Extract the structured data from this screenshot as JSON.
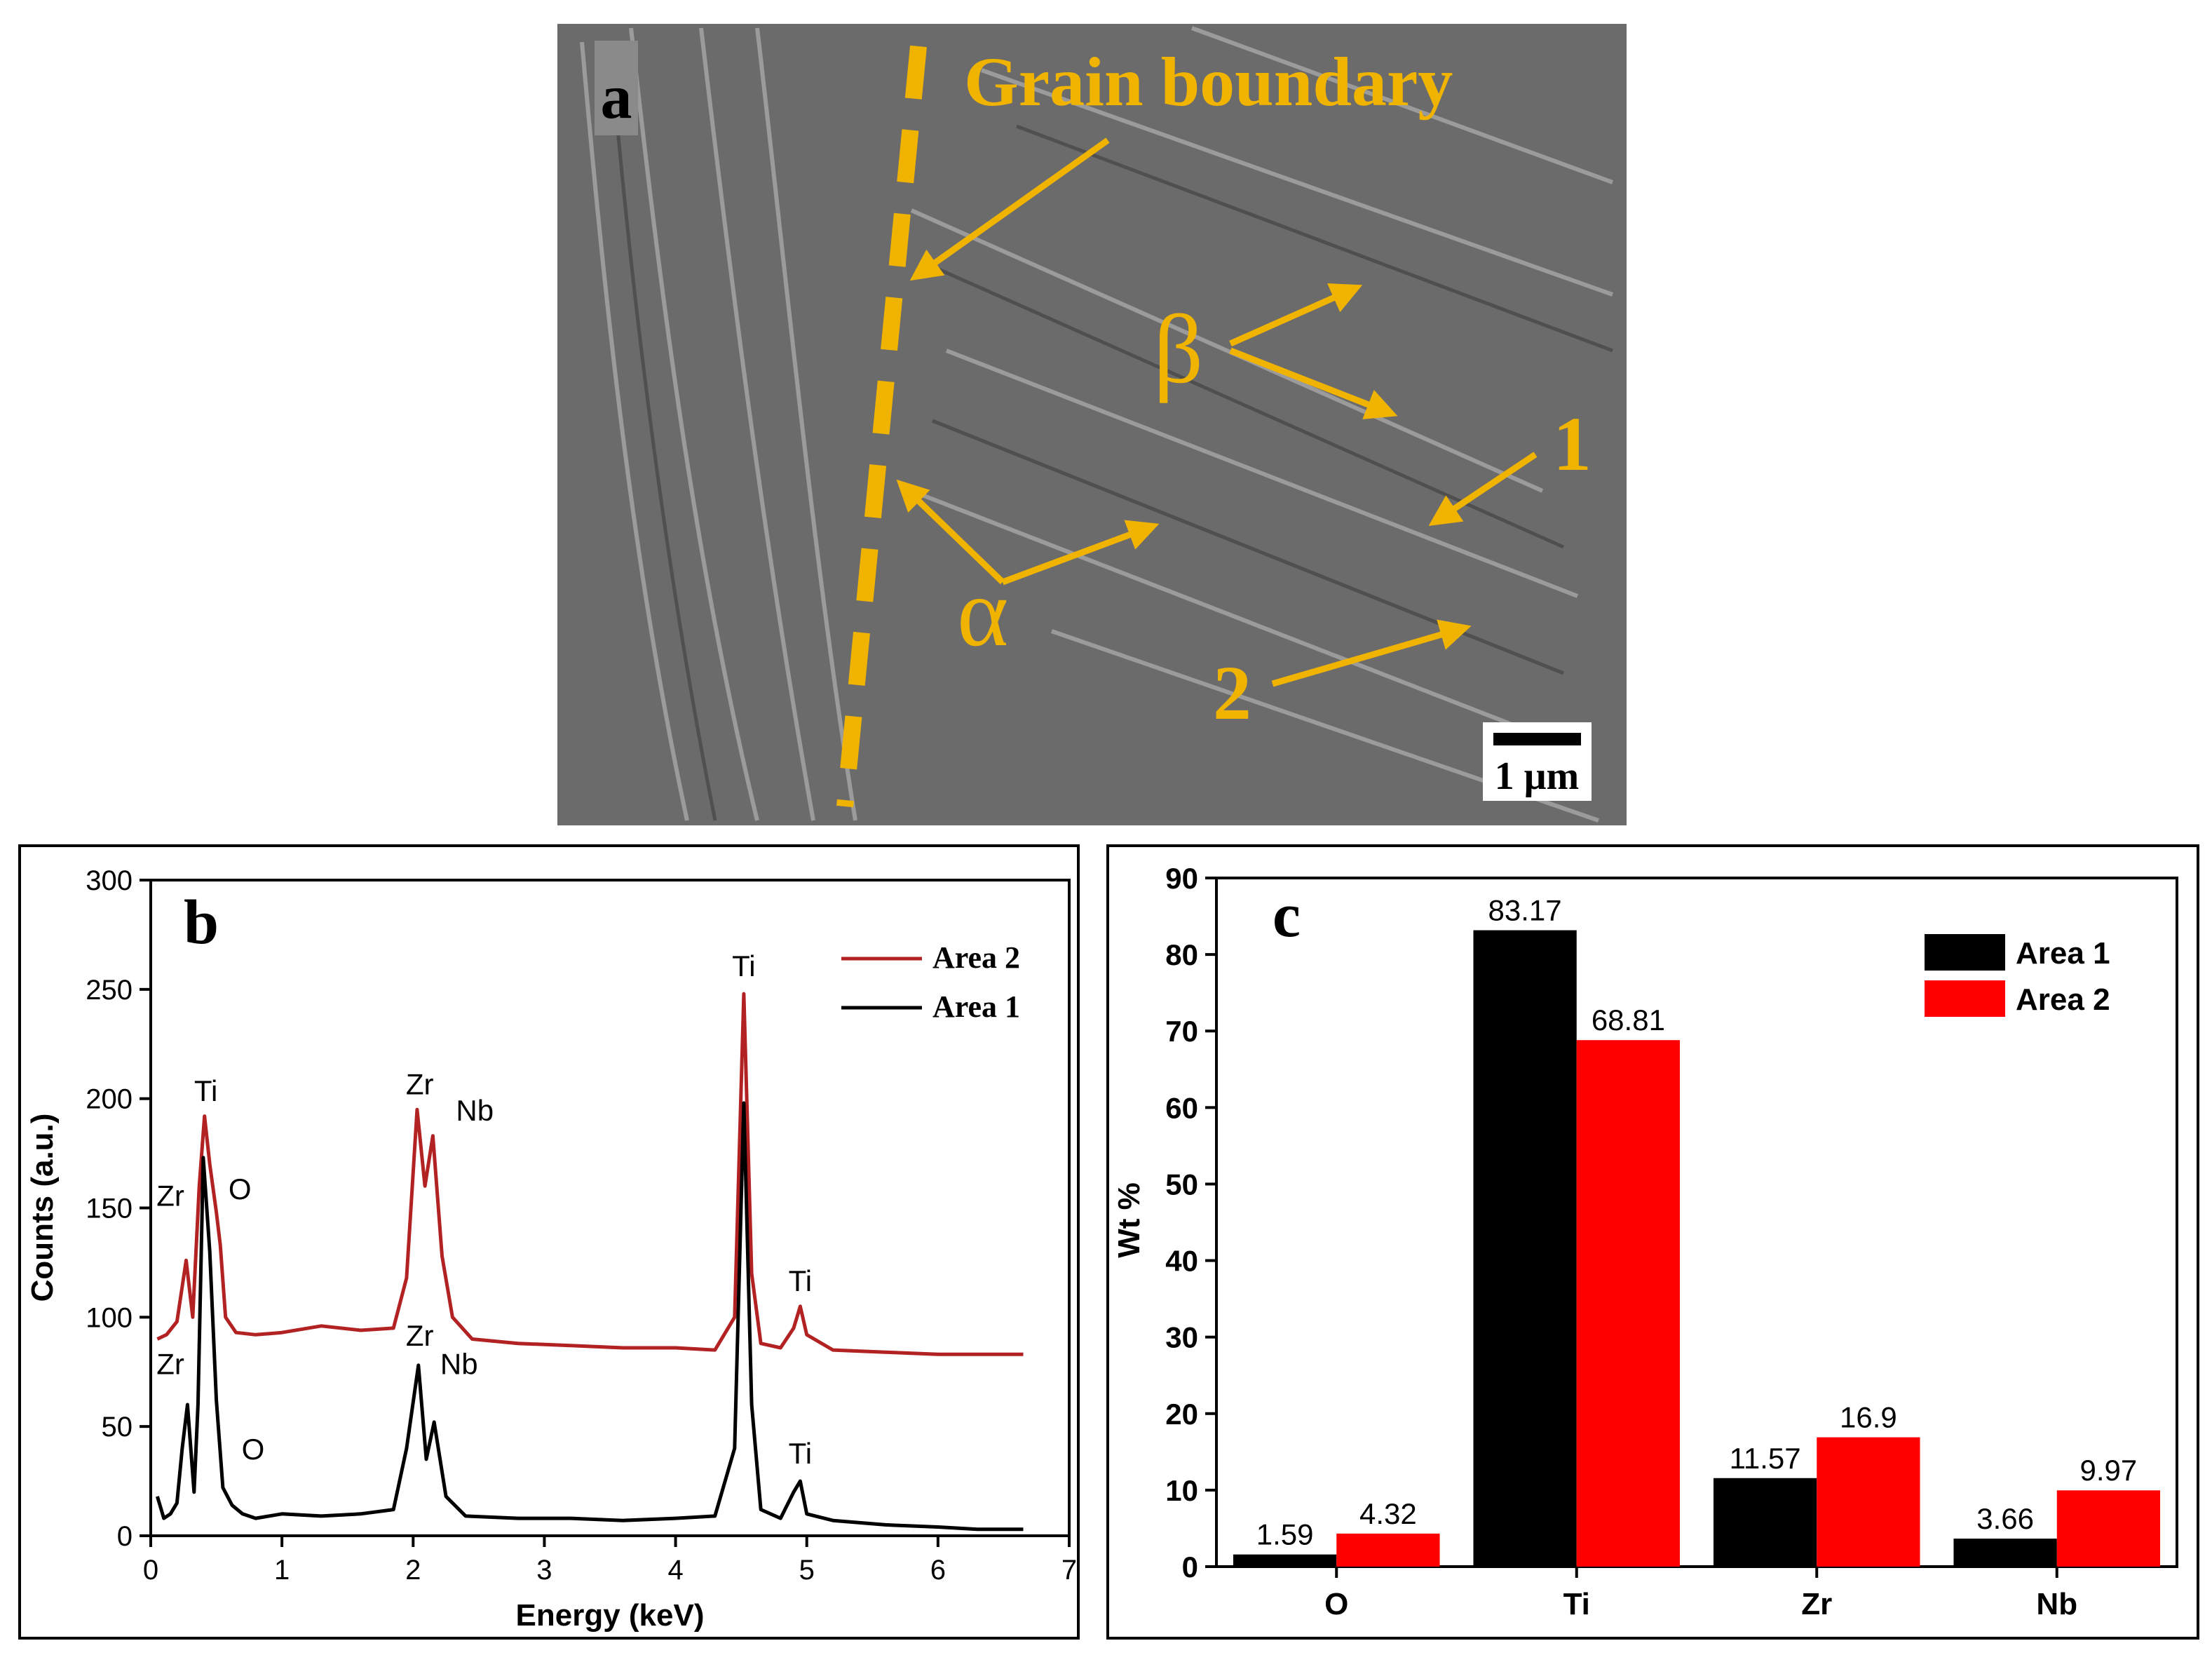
{
  "panel_a": {
    "label": "a",
    "annotations": {
      "grain_boundary": "Grain boundary",
      "beta": "β",
      "alpha": "α",
      "point_1": "1",
      "point_2": "2"
    },
    "scale_bar": "1 μm",
    "colors": {
      "annotation": "#f0b400",
      "background": "#6b6b6b"
    }
  },
  "panel_b": {
    "label": "b",
    "chart_data": {
      "type": "line",
      "xlabel": "Energy (keV)",
      "ylabel": "Counts (a.u.)",
      "xlim": [
        0,
        7
      ],
      "ylim": [
        0,
        300
      ],
      "x_ticks": [
        "0",
        "1",
        "2",
        "3",
        "4",
        "5",
        "6",
        "7"
      ],
      "y_ticks": [
        "0",
        "50",
        "100",
        "150",
        "200",
        "250",
        "300"
      ],
      "legend_placement": "top-right",
      "series": [
        {
          "name": "Area 2",
          "color": "#b22222",
          "points": [
            [
              0.05,
              90
            ],
            [
              0.12,
              92
            ],
            [
              0.2,
              98
            ],
            [
              0.27,
              126
            ],
            [
              0.32,
              100
            ],
            [
              0.37,
              160
            ],
            [
              0.41,
              192
            ],
            [
              0.45,
              170
            ],
            [
              0.5,
              148
            ],
            [
              0.53,
              133
            ],
            [
              0.57,
              100
            ],
            [
              0.65,
              93
            ],
            [
              0.8,
              92
            ],
            [
              1.0,
              93
            ],
            [
              1.3,
              96
            ],
            [
              1.6,
              94
            ],
            [
              1.85,
              95
            ],
            [
              1.95,
              118
            ],
            [
              2.03,
              195
            ],
            [
              2.09,
              160
            ],
            [
              2.15,
              183
            ],
            [
              2.22,
              128
            ],
            [
              2.3,
              100
            ],
            [
              2.45,
              90
            ],
            [
              2.8,
              88
            ],
            [
              3.2,
              87
            ],
            [
              3.6,
              86
            ],
            [
              4.0,
              86
            ],
            [
              4.3,
              85
            ],
            [
              4.45,
              100
            ],
            [
              4.52,
              248
            ],
            [
              4.58,
              120
            ],
            [
              4.65,
              88
            ],
            [
              4.8,
              86
            ],
            [
              4.9,
              95
            ],
            [
              4.95,
              105
            ],
            [
              5.0,
              92
            ],
            [
              5.2,
              85
            ],
            [
              5.6,
              84
            ],
            [
              6.0,
              83
            ],
            [
              6.3,
              83
            ],
            [
              6.65,
              83
            ]
          ]
        },
        {
          "name": "Area 1",
          "color": "#000000",
          "points": [
            [
              0.05,
              18
            ],
            [
              0.1,
              8
            ],
            [
              0.15,
              10
            ],
            [
              0.2,
              15
            ],
            [
              0.24,
              40
            ],
            [
              0.28,
              60
            ],
            [
              0.33,
              20
            ],
            [
              0.36,
              60
            ],
            [
              0.4,
              173
            ],
            [
              0.45,
              130
            ],
            [
              0.5,
              62
            ],
            [
              0.55,
              22
            ],
            [
              0.62,
              14
            ],
            [
              0.7,
              10
            ],
            [
              0.8,
              8
            ],
            [
              1.0,
              10
            ],
            [
              1.3,
              9
            ],
            [
              1.6,
              10
            ],
            [
              1.85,
              12
            ],
            [
              1.95,
              40
            ],
            [
              2.04,
              78
            ],
            [
              2.1,
              35
            ],
            [
              2.16,
              52
            ],
            [
              2.25,
              18
            ],
            [
              2.4,
              9
            ],
            [
              2.8,
              8
            ],
            [
              3.2,
              8
            ],
            [
              3.6,
              7
            ],
            [
              4.0,
              8
            ],
            [
              4.3,
              9
            ],
            [
              4.45,
              40
            ],
            [
              4.52,
              198
            ],
            [
              4.58,
              60
            ],
            [
              4.65,
              12
            ],
            [
              4.8,
              8
            ],
            [
              4.9,
              20
            ],
            [
              4.95,
              25
            ],
            [
              5.0,
              10
            ],
            [
              5.2,
              7
            ],
            [
              5.6,
              5
            ],
            [
              6.0,
              4
            ],
            [
              6.3,
              3
            ],
            [
              6.65,
              3
            ]
          ]
        }
      ],
      "peak_labels": [
        {
          "text": "Ti",
          "x": 0.42,
          "y": 199
        },
        {
          "text": "Zr",
          "x": 0.15,
          "y": 151
        },
        {
          "text": "O",
          "x": 0.68,
          "y": 154
        },
        {
          "text": "Zr",
          "x": 2.05,
          "y": 202
        },
        {
          "text": "Nb",
          "x": 2.47,
          "y": 190
        },
        {
          "text": "Ti",
          "x": 4.52,
          "y": 256
        },
        {
          "text": "Ti",
          "x": 4.95,
          "y": 112
        },
        {
          "text": "Zr",
          "x": 0.15,
          "y": 74
        },
        {
          "text": "O",
          "x": 0.78,
          "y": 35
        },
        {
          "text": "Zr",
          "x": 2.05,
          "y": 87
        },
        {
          "text": "Nb",
          "x": 2.35,
          "y": 74
        },
        {
          "text": "Ti",
          "x": 4.95,
          "y": 33
        }
      ]
    }
  },
  "panel_c": {
    "label": "c",
    "chart_data": {
      "type": "bar",
      "categories": [
        "O",
        "Ti",
        "Zr",
        "Nb"
      ],
      "xlabel": "",
      "ylabel": "Wt %",
      "ylim": [
        0,
        90
      ],
      "y_ticks": [
        "0",
        "10",
        "20",
        "30",
        "40",
        "50",
        "60",
        "70",
        "80",
        "90"
      ],
      "legend_placement": "top-right",
      "series": [
        {
          "name": "Area 1",
          "color": "#000000",
          "values": [
            1.59,
            83.17,
            11.57,
            3.66
          ],
          "labels": [
            "1.59",
            "83.17",
            "11.57",
            "3.66"
          ]
        },
        {
          "name": "Area 2",
          "color": "#ff0000",
          "values": [
            4.32,
            68.81,
            16.9,
            9.97
          ],
          "labels": [
            "4.32",
            "68.81",
            "16.9",
            "9.97"
          ]
        }
      ]
    }
  }
}
